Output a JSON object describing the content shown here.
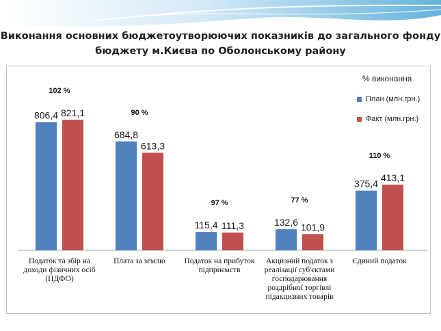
{
  "slide": {
    "title_line1": "Виконання основних бюджетоутворюючих показників до загального фонду",
    "title_line2": "бюджету м.Києва по Оболонському району"
  },
  "chart_data": {
    "type": "bar",
    "title": "",
    "categories": [
      "Податок та збір на доходи фізичних осіб (ПДФО)",
      "Плата за землю",
      "Податок на прибуток підприємств",
      "Акцизний податок з реалізації суб'єктами господарювання роздрібної торгівлі підакцизних товарів",
      "Єдиний податок"
    ],
    "series": [
      {
        "name": "План (млн.грн.)",
        "values": [
          806.4,
          684.8,
          115.4,
          132.6,
          375.4
        ],
        "value_labels": [
          "806,4",
          "684,8",
          "115,4",
          "132,6",
          "375,4"
        ],
        "color": "#4f81bd"
      },
      {
        "name": "Факт (млн.грн.)",
        "values": [
          821.1,
          613.3,
          111.3,
          101.9,
          413.1
        ],
        "value_labels": [
          "821,1",
          "613,3",
          "111,3",
          "101,9",
          "413,1"
        ],
        "color": "#c0504d"
      }
    ],
    "percent_labels": [
      "102 %",
      "90 %",
      "97 %",
      "77 %",
      "110 %"
    ],
    "legend_title": "% виконання",
    "legend_position": "top-right",
    "ylim": [
      0,
      900
    ],
    "grid": false
  }
}
